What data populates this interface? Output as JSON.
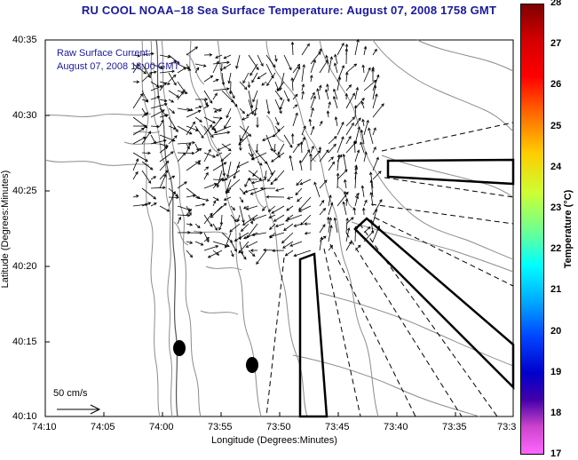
{
  "title": "RU COOL  NOAA–18  Sea Surface Temperature:  August 07, 2008 1758 GMT",
  "legend": {
    "line1": "Raw Surface Current:",
    "line2": "August 07, 2008 18:00 GMT"
  },
  "scale": {
    "label": "50 cm/s"
  },
  "axes": {
    "xlabel": "Longitude (Degrees:Minutes)",
    "ylabel": "Latitude (Degrees:Minutes)",
    "x_ticks": [
      "74:10",
      "74:05",
      "74:00",
      "73:55",
      "73:50",
      "73:45",
      "73:40",
      "73:35",
      "73:3"
    ],
    "y_ticks": [
      "40:35",
      "40:30",
      "40:25",
      "40:20",
      "40:15",
      "40:10"
    ]
  },
  "colorbar": {
    "label": "Temperature (°C)",
    "min": 17,
    "max": 28,
    "ticks": [
      "28",
      "27",
      "26",
      "25",
      "24",
      "23",
      "22",
      "21",
      "20",
      "19",
      "18",
      "17"
    ]
  },
  "colors": {
    "title": "#1a1a9c",
    "vectors": "#000000",
    "contours": "#8a8a8a"
  }
}
